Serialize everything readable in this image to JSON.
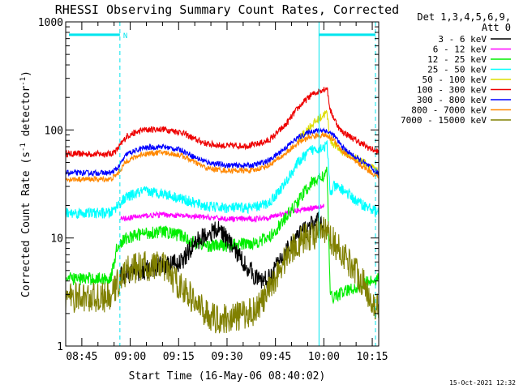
{
  "chart_data": {
    "type": "line",
    "title": "RHESSI Observing Summary Count Rates, Corrected",
    "xlabel": "Start Time (16-May-06 08:40:02)",
    "ylabel_main": "Corrected Count Rate (s",
    "ylabel_sup1": "-1",
    "ylabel_mid": " detector",
    "ylabel_sup2": "-1",
    "ylabel_end": ")",
    "yscale": "log",
    "ylim": [
      1,
      1000
    ],
    "y_ticks": [
      {
        "value": 1,
        "label": "1"
      },
      {
        "value": 10,
        "label": "10"
      },
      {
        "value": 100,
        "label": "100"
      },
      {
        "value": 1000,
        "label": "1000"
      }
    ],
    "xlim_min": [
      40,
      137
    ],
    "x_ticks": [
      {
        "min": 45,
        "label": "08:45"
      },
      {
        "min": 60,
        "label": "09:00"
      },
      {
        "min": 75,
        "label": "09:15"
      },
      {
        "min": 90,
        "label": "09:30"
      },
      {
        "min": 105,
        "label": "09:45"
      },
      {
        "min": 120,
        "label": "10:00"
      },
      {
        "min": 135,
        "label": "10:15"
      }
    ],
    "legend": {
      "header1": "Det 1,3,4,5,6,9,",
      "header2": "Att 0",
      "position": "right",
      "entries": [
        {
          "label": "3 - 6 keV",
          "color": "#000000"
        },
        {
          "label": "6 - 12 keV",
          "color": "#ff00ff"
        },
        {
          "label": "12 - 25 keV",
          "color": "#00ee00"
        },
        {
          "label": "25 - 50 keV",
          "color": "#00ffff"
        },
        {
          "label": "50 - 100 keV",
          "color": "#dddd00"
        },
        {
          "label": "100 - 300 keV",
          "color": "#ee0000"
        },
        {
          "label": "300 - 800 keV",
          "color": "#0000ff"
        },
        {
          "label": "800 - 7000 keV",
          "color": "#ff8800"
        },
        {
          "label": "7000 - 15000 keV",
          "color": "#808000"
        }
      ]
    },
    "night_marker": {
      "label": "N",
      "color": "#00e5ee",
      "y_value": 760,
      "intervals_min": [
        [
          41,
          56.8
        ],
        [
          118.5,
          136
        ]
      ]
    },
    "eclipse_lines_min": [
      56.8,
      118.5,
      136
    ],
    "series": [
      {
        "name": "100 - 300 keV",
        "color": "#ee0000",
        "noise": 0.03,
        "points": [
          [
            40,
            60
          ],
          [
            54,
            60
          ],
          [
            56,
            66
          ],
          [
            59,
            88
          ],
          [
            64,
            100
          ],
          [
            70,
            102
          ],
          [
            76,
            95
          ],
          [
            80,
            82
          ],
          [
            84,
            74
          ],
          [
            90,
            71
          ],
          [
            98,
            72
          ],
          [
            103,
            80
          ],
          [
            108,
            110
          ],
          [
            112,
            160
          ],
          [
            116,
            210
          ],
          [
            120,
            240
          ],
          [
            121,
            245
          ],
          [
            122,
            150
          ],
          [
            125,
            100
          ],
          [
            130,
            80
          ],
          [
            134,
            68
          ],
          [
            137,
            62
          ]
        ]
      },
      {
        "name": "50 - 100 keV",
        "color": "#dddd00",
        "noise": 0.04,
        "points": [
          [
            112,
            80
          ],
          [
            116,
            110
          ],
          [
            119,
            130
          ],
          [
            120,
            140
          ],
          [
            121,
            142
          ],
          [
            122,
            80
          ],
          [
            125,
            65
          ],
          [
            130,
            55
          ],
          [
            134,
            47
          ],
          [
            137,
            40
          ]
        ]
      },
      {
        "name": "300 - 800 keV",
        "color": "#0000ff",
        "noise": 0.025,
        "points": [
          [
            40,
            40
          ],
          [
            54,
            40
          ],
          [
            56,
            44
          ],
          [
            59,
            60
          ],
          [
            64,
            68
          ],
          [
            70,
            70
          ],
          [
            76,
            65
          ],
          [
            80,
            56
          ],
          [
            84,
            50
          ],
          [
            90,
            47
          ],
          [
            98,
            47
          ],
          [
            103,
            52
          ],
          [
            108,
            68
          ],
          [
            112,
            85
          ],
          [
            116,
            97
          ],
          [
            120,
            100
          ],
          [
            123,
            90
          ],
          [
            126,
            68
          ],
          [
            130,
            55
          ],
          [
            134,
            46
          ],
          [
            137,
            39
          ]
        ]
      },
      {
        "name": "800 - 7000 keV",
        "color": "#ff8800",
        "noise": 0.025,
        "points": [
          [
            40,
            35
          ],
          [
            54,
            35
          ],
          [
            56,
            39
          ],
          [
            59,
            52
          ],
          [
            64,
            60
          ],
          [
            70,
            62
          ],
          [
            76,
            58
          ],
          [
            80,
            50
          ],
          [
            84,
            44
          ],
          [
            90,
            42
          ],
          [
            98,
            42
          ],
          [
            103,
            47
          ],
          [
            108,
            60
          ],
          [
            112,
            76
          ],
          [
            116,
            87
          ],
          [
            120,
            90
          ],
          [
            123,
            82
          ],
          [
            126,
            62
          ],
          [
            130,
            50
          ],
          [
            134,
            42
          ],
          [
            137,
            36
          ]
        ]
      },
      {
        "name": "25 - 50 keV",
        "color": "#00ffff",
        "noise": 0.05,
        "points": [
          [
            40,
            17
          ],
          [
            54,
            17
          ],
          [
            56,
            20
          ],
          [
            59,
            24
          ],
          [
            64,
            27
          ],
          [
            70,
            26
          ],
          [
            76,
            23
          ],
          [
            80,
            21
          ],
          [
            84,
            19.5
          ],
          [
            90,
            19
          ],
          [
            98,
            19
          ],
          [
            103,
            21
          ],
          [
            108,
            32
          ],
          [
            112,
            50
          ],
          [
            116,
            65
          ],
          [
            120,
            70
          ],
          [
            121,
            72
          ],
          [
            122,
            25
          ],
          [
            123,
            30
          ],
          [
            126,
            28
          ],
          [
            130,
            22
          ],
          [
            134,
            19
          ],
          [
            137,
            17
          ]
        ]
      },
      {
        "name": "6 - 12 keV",
        "color": "#ff00ff",
        "noise": 0.025,
        "points": [
          [
            57,
            15
          ],
          [
            64,
            16
          ],
          [
            70,
            16.5
          ],
          [
            76,
            16
          ],
          [
            84,
            15.5
          ],
          [
            90,
            15
          ],
          [
            98,
            15
          ],
          [
            103,
            15.5
          ],
          [
            108,
            17
          ],
          [
            112,
            18
          ],
          [
            116,
            19
          ],
          [
            120,
            20
          ]
        ]
      },
      {
        "name": "12 - 25 keV",
        "color": "#00ee00",
        "noise": 0.06,
        "points": [
          [
            40,
            4.2
          ],
          [
            54,
            4.2
          ],
          [
            56,
            8.5
          ],
          [
            59,
            10
          ],
          [
            64,
            11
          ],
          [
            70,
            11.5
          ],
          [
            76,
            10.5
          ],
          [
            80,
            9
          ],
          [
            84,
            8.5
          ],
          [
            90,
            8.5
          ],
          [
            98,
            9
          ],
          [
            103,
            10
          ],
          [
            108,
            15
          ],
          [
            112,
            22
          ],
          [
            116,
            32
          ],
          [
            120,
            38
          ],
          [
            121,
            40
          ],
          [
            122,
            2.8
          ],
          [
            130,
            3.5
          ],
          [
            134,
            4
          ],
          [
            137,
            4.2
          ]
        ]
      },
      {
        "name": "3 - 6 keV",
        "color": "#000000",
        "noise": 0.09,
        "points": [
          [
            57,
            4.5
          ],
          [
            64,
            5
          ],
          [
            70,
            5.5
          ],
          [
            76,
            6
          ],
          [
            80,
            9
          ],
          [
            84,
            11
          ],
          [
            88,
            12
          ],
          [
            92,
            8
          ],
          [
            96,
            5.5
          ],
          [
            100,
            4
          ],
          [
            103,
            4.2
          ],
          [
            106,
            6
          ],
          [
            110,
            9
          ],
          [
            114,
            12
          ],
          [
            118,
            14
          ],
          [
            120,
            14
          ]
        ]
      },
      {
        "name": "7000 - 15000 keV",
        "color": "#808000",
        "noise": 0.14,
        "points": [
          [
            40,
            2.8
          ],
          [
            54,
            2.8
          ],
          [
            56,
            3.8
          ],
          [
            59,
            5
          ],
          [
            64,
            5.5
          ],
          [
            70,
            5.5
          ],
          [
            74,
            4
          ],
          [
            78,
            3
          ],
          [
            82,
            2.2
          ],
          [
            86,
            1.8
          ],
          [
            90,
            1.8
          ],
          [
            94,
            1.9
          ],
          [
            98,
            2.1
          ],
          [
            102,
            2.8
          ],
          [
            106,
            5
          ],
          [
            110,
            8
          ],
          [
            114,
            10
          ],
          [
            118,
            11
          ],
          [
            120,
            11.5
          ],
          [
            122,
            10
          ],
          [
            126,
            7
          ],
          [
            130,
            5
          ],
          [
            134,
            3
          ],
          [
            136,
            2.2
          ],
          [
            137,
            2.5
          ]
        ]
      }
    ]
  },
  "footer": {
    "timestamp": "15-Oct-2021 12:32"
  }
}
